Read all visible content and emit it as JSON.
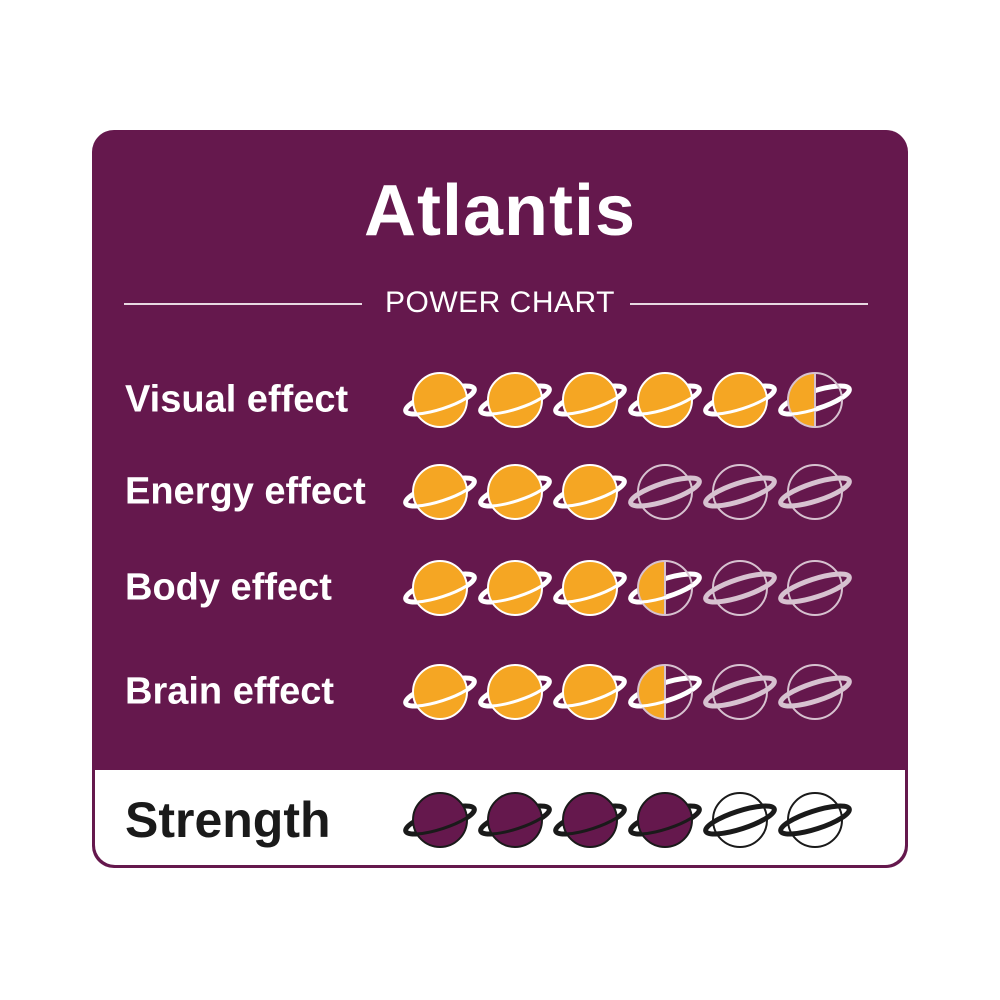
{
  "title": "Atlantis",
  "subtitle": "POWER CHART",
  "max_rating": 6,
  "colors": {
    "background": "#65184d",
    "filled": "#f5a623",
    "ring_light": "#ffffff",
    "empty_light": "#d7c2d0",
    "strength_fill": "#65184d",
    "strength_ring": "#1a1a1a"
  },
  "icon": "planet-icon",
  "effects": [
    {
      "label": "Visual effect",
      "rating": 5.5
    },
    {
      "label": "Energy effect",
      "rating": 3
    },
    {
      "label": "Body effect",
      "rating": 3.5
    },
    {
      "label": "Brain effect",
      "rating": 3.5
    }
  ],
  "strength": {
    "label": "Strength",
    "rating": 4
  }
}
